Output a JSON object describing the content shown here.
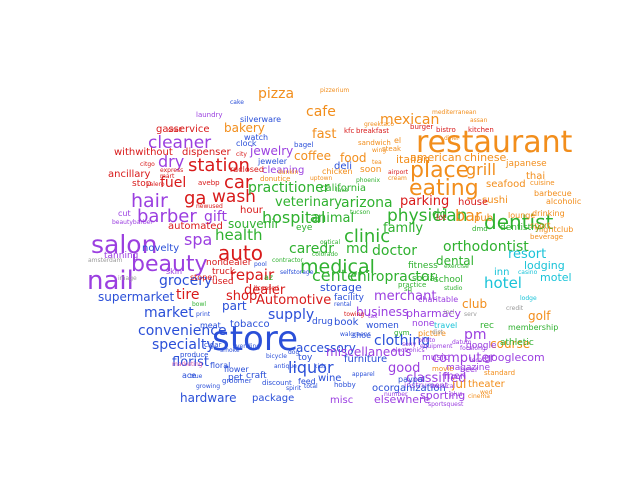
{
  "colors": {
    "orange": "#f28e1c",
    "blue": "#2a4fd8",
    "red": "#d81a1a",
    "purple": "#9b3fe0",
    "green": "#2fb12f",
    "cyan": "#19c3d8",
    "pink": "#e05fb0",
    "gray": "#9a9a9a"
  },
  "words": {
    "store": "store",
    "restaurant": "restaurant",
    "nail": "nail",
    "salon": "salon",
    "beauty": "beauty",
    "hospital": "hospital",
    "medical": "medical",
    "eating": "eating",
    "place": "place",
    "dentist": "dentist",
    "clinic": "clinic",
    "physician": "physician",
    "auto": "auto",
    "center": "center",
    "car": "car",
    "wash": "wash",
    "station": "station",
    "cleaner": "cleaner",
    "hair": "hair",
    "barber": "barber",
    "gas": "ga",
    "pizza": "pizza",
    "cafe": "cafe",
    "mexican": "mexican",
    "fast": "fast",
    "food": "food",
    "bar": "bar",
    "grill": "grill",
    "orthodontist": "orthodontist",
    "dental": "dental",
    "doctor": "doctor",
    "veterinary": "veterinary",
    "arizona": "arizona",
    "family": "family",
    "parking": "parking",
    "health": "health",
    "animal": "animal",
    "caredr": "caredr",
    "md": "md",
    "pc": "pc",
    "chiropractor": "chiropractor",
    "repair": "repair",
    "dealer": "dealer",
    "automotive": "Automotive",
    "shop": "shop",
    "grocery": "grocery",
    "market": "market",
    "supermarket": "supermarket",
    "tire": "tire",
    "spa": "spa",
    "gift": "gift",
    "dry": "dry",
    "fuel": "fuel",
    "practitioner": "practitioner",
    "bakery": "bakery",
    "jewelry": "jewelry",
    "coffee": "coffee",
    "liquor": "liquor",
    "supply": "supply",
    "accessory": "accessory",
    "clothing": "clothing",
    "specialty": "specialty",
    "convenience": "convenience",
    "florist": "florist",
    "hardware": "hardware",
    "package": "package",
    "misc": "misc",
    "elsewhere": "elsewhere",
    "sporting": "sporting",
    "computer": "computer",
    "classified": "classified",
    "good": "good",
    "miscellaneous": "miscellaneous",
    "business": "business",
    "merchant": "merchant",
    "pharmacy": "pharmacy",
    "hotel": "hotel",
    "resort": "resort",
    "lodging": "lodging",
    "motel": "motel",
    "golf": "golf",
    "course": "course",
    "club": "club",
    "theater": "theater",
    "jul": "jul",
    "googlecom": "googlecom",
    "google": "google",
    "magazine": "magazine",
    "athletic": "athletic",
    "membership": "membership",
    "american": "american",
    "chinese": "chinese",
    "italian": "italian",
    "thai": "thai",
    "seafood": "seafood",
    "sushi": "sushi",
    "japanese": "japanese",
    "cuisine": "cuisine",
    "breakfast": "breakfast",
    "house": "house",
    "dd": "dd",
    "inn": "inn",
    "fitness": "fitness",
    "social": "social",
    "school": "school",
    "california": "california",
    "deli": "deli",
    "soon": "soon",
    "cleaning": "cleaning",
    "souvenir": "souvenir",
    "hour": "hour",
    "automated": "automated",
    "novelty": "novelty",
    "tanning": "tanning",
    "gasservice": "gasservice",
    "withwithout": "withwithout",
    "dispenser": "dispenser",
    "ancillary": "ancillary",
    "stop": "stop",
    "nondealer": "nondealer",
    "storage": "storage",
    "facility": "facility",
    "drug": "drug",
    "book": "book",
    "shoe": "shoe",
    "wine": "wine",
    "furniture": "furniture",
    "women": "women",
    "none": "none",
    "pm": "pm",
    "part": "part",
    "tobacco": "tobacco",
    "meat": "meat",
    "ace": "ace",
    "pet": "pet",
    "craft": "craft",
    "feed": "feed",
    "toy": "toy",
    "music": "music",
    "instrument": "instrument",
    "beer": "beer",
    "men": "men",
    "sport": "sport",
    "pub": "pub",
    "barbecue": "barbecue",
    "dentistry": "dentistry",
    "nightclub": "nightclub",
    "drinking": "drinking",
    "lounge": "lounge",
    "alcoholic": "alcoholic",
    "beverage": "beverage",
    "rec": "rec",
    "travel": "travel",
    "standard": "standard",
    "movie": "movie",
    "picture": "picture",
    "paypal": "paypal",
    "ocorganization": "ocorganization",
    "charitable": "charitable",
    "skin": "skin",
    "cut": "cut",
    "truck": "truck",
    "silverware": "silverware",
    "watch": "watch",
    "laundry": "laundry",
    "cake": "cake",
    "clock": "clock",
    "jeweler": "jeweler",
    "rdclosed": "rdclosed",
    "bagel": "bagel",
    "chicken": "chicken",
    "kfc": "kfc",
    "pizzerium": "pizzerium",
    "mediterranean": "mediterranean",
    "bistro": "bistro",
    "kitchen": "kitchen",
    "burger": "burger",
    "sandwich": "sandwich",
    "steak": "steak",
    "diner": "diner",
    "el": "el",
    "amsterdam": "amsterdam",
    "produce": "produce",
    "marketing": "marketing",
    "floral": "floral",
    "flower": "flower",
    "true": "true",
    "groomer": "groomer",
    "discount": "discount",
    "hobby": "hobby",
    "cigar": "cigar",
    "smoke": "smoke",
    "bicycle": "bicycle",
    "towing": "towing",
    "gym": "gym",
    "citgo": "citgo",
    "mart": "mart",
    "express": "express",
    "avebp": "avebp",
    "image": "image",
    "serv": "serv",
    "dist": "dist",
    "lodge": "lodge",
    "credit": "credit",
    "assan": "assan",
    "greektaco": "greektaco",
    "shell": "shell",
    "valero": "valero",
    "stopen": "stopen",
    "used": "used",
    "bowl": "bowl",
    "print": "print",
    "eye": "eye",
    "tax": "tax",
    "colorado": "colorado",
    "contractor": "contractor",
    "selfstorage": "selfstorage",
    "pool": "pool",
    "az": "az",
    "antique": "antique",
    "apparel": "apparel",
    "casino": "casino",
    "lot": "lot",
    "sq": "sq",
    "dmd": "dmd",
    "airport": "airport",
    "phoenix": "phoenix",
    "donutice": "donutice",
    "practice": "practice",
    "newused": "newused",
    "city": "city",
    "sony": "sony",
    "cream": "cream",
    "tucson": "tucson",
    "electronics": "electronics",
    "dunkin": "dunkin",
    "studio": "studio",
    "equipment": "equipment",
    "optical": "optical",
    "photo": "photo",
    "vending": "vending",
    "rental": "rental",
    "licensed": "licensed",
    "wing": "wing",
    "dog": "dog",
    "uptown": "uptown",
    "lake": "lake",
    "spirit": "spirit",
    "number": "number",
    "growing": "growing",
    "musical": "musical",
    "total": "total",
    "local": "local",
    "beautybarber": "beautybarber",
    "exercise": "exercise",
    "datum": "datum",
    "wed": "wed",
    "kids": "kids",
    "pizza2": "pie",
    "tea": "tea",
    "plus": "plus",
    "walgreens": "walgreens",
    "cinema": "cinema",
    "focalong": "focalong",
    "incl": "incl",
    "sportsquest": "sportsquest"
  }
}
